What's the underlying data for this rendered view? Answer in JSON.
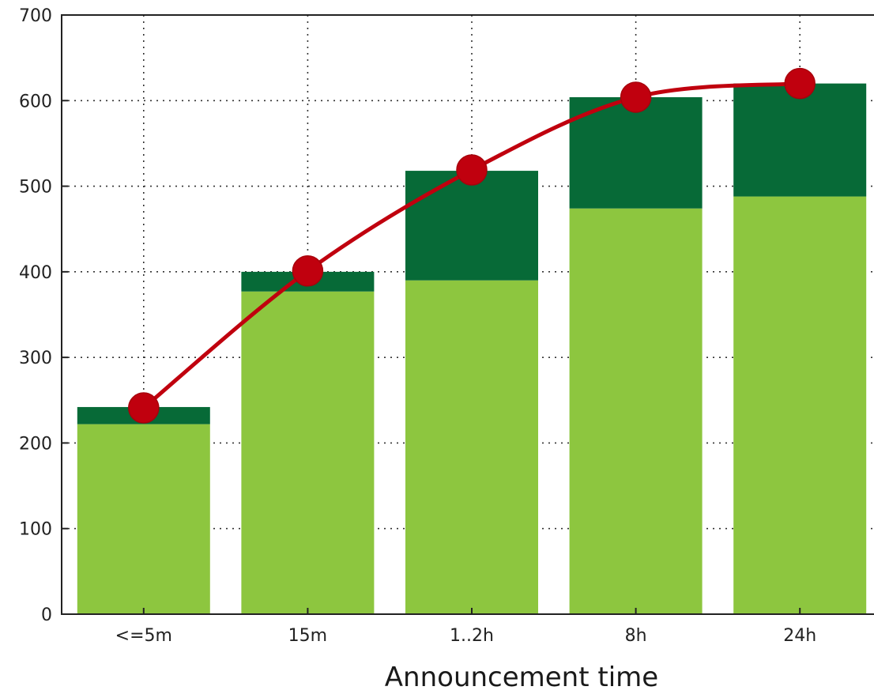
{
  "chart_data": {
    "type": "bar",
    "stacked": true,
    "categories": [
      "<=5m",
      "15m",
      "1..2h",
      "8h",
      "24h"
    ],
    "series": [
      {
        "values": [
          222,
          377,
          390,
          474,
          488
        ],
        "color": "#8dc63f",
        "kind": "bar"
      },
      {
        "values": [
          20,
          23,
          128,
          130,
          132
        ],
        "color": "#076a37",
        "kind": "bar"
      },
      {
        "values": [
          241,
          401,
          519,
          604,
          620
        ],
        "color": "#c0000e",
        "kind": "line"
      }
    ],
    "xlabel": "Announcement time",
    "ylabel": "",
    "ylim": [
      0,
      700
    ],
    "yticks": [
      0,
      100,
      200,
      300,
      400,
      500,
      600,
      700
    ],
    "grid": true
  }
}
